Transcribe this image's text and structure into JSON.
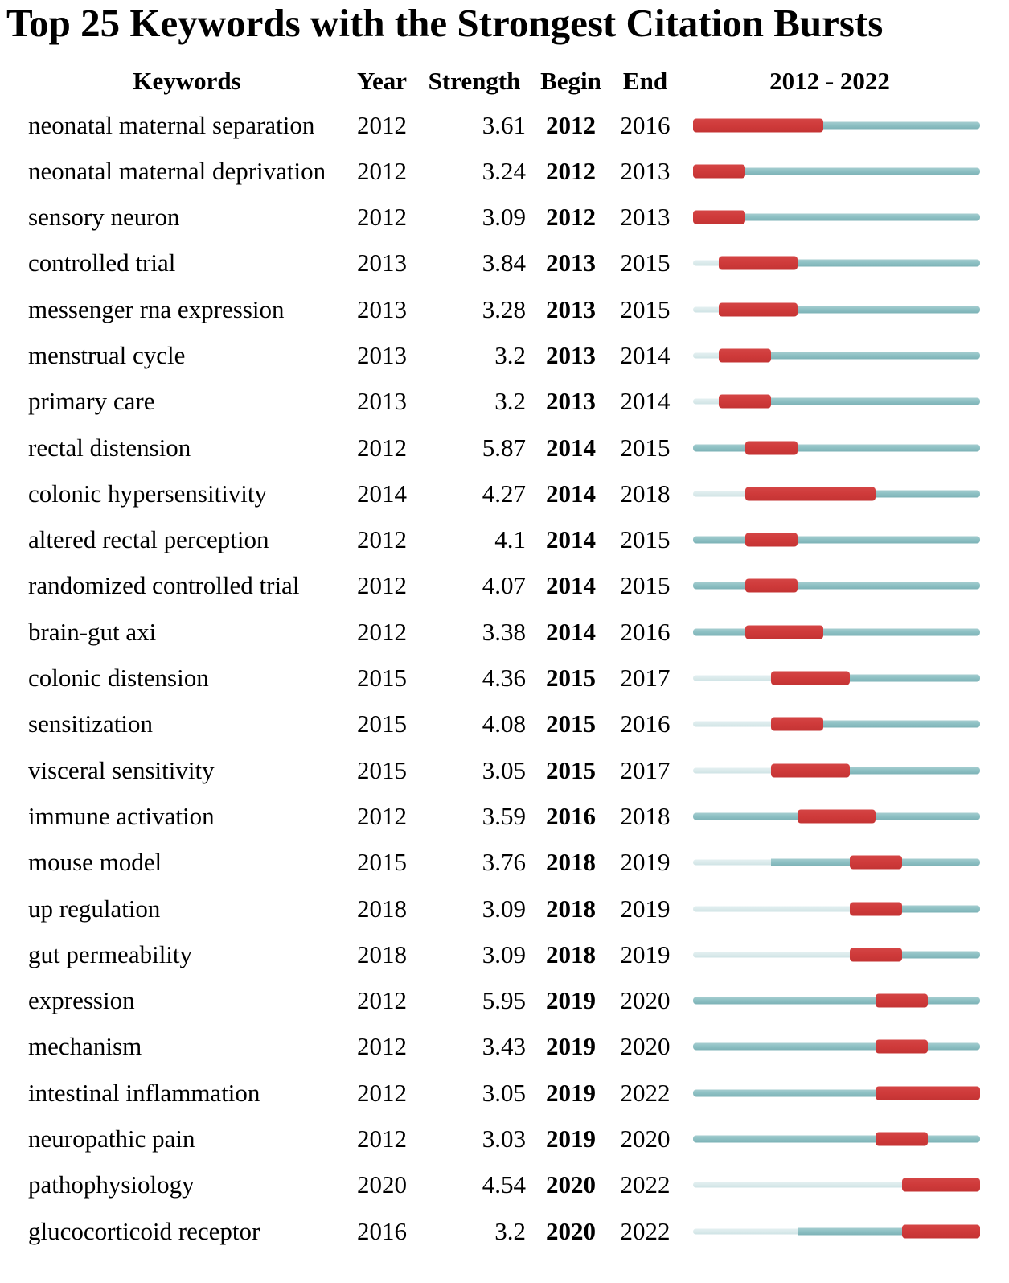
{
  "figure": {
    "title": "Top 25 Keywords with the Strongest Citation Bursts"
  },
  "chart_data": {
    "type": "bar",
    "subtype": "citation-burst-timeline-table",
    "title": "Top 25 Keywords with the Strongest Citation Bursts",
    "columns": [
      "Keywords",
      "Year",
      "Strength",
      "Begin",
      "End",
      "2012 - 2022"
    ],
    "timeline_start": 2012,
    "timeline_end": 2022,
    "colors": {
      "burst_red": "#cf3a3a",
      "active_teal": "#8ec1c4",
      "pre_appearance_pale": "#d8e9ea",
      "text": "#000000",
      "background": "#ffffff"
    },
    "legend_note": "",
    "rows": [
      {
        "keyword": "neonatal maternal separation",
        "year": 2012,
        "strength": "3.61",
        "begin": 2012,
        "end": 2016
      },
      {
        "keyword": "neonatal maternal deprivation",
        "year": 2012,
        "strength": "3.24",
        "begin": 2012,
        "end": 2013
      },
      {
        "keyword": "sensory neuron",
        "year": 2012,
        "strength": "3.09",
        "begin": 2012,
        "end": 2013
      },
      {
        "keyword": "controlled trial",
        "year": 2013,
        "strength": "3.84",
        "begin": 2013,
        "end": 2015
      },
      {
        "keyword": "messenger rna expression",
        "year": 2013,
        "strength": "3.28",
        "begin": 2013,
        "end": 2015
      },
      {
        "keyword": "menstrual cycle",
        "year": 2013,
        "strength": "3.2",
        "begin": 2013,
        "end": 2014
      },
      {
        "keyword": "primary care",
        "year": 2013,
        "strength": "3.2",
        "begin": 2013,
        "end": 2014
      },
      {
        "keyword": "rectal distension",
        "year": 2012,
        "strength": "5.87",
        "begin": 2014,
        "end": 2015
      },
      {
        "keyword": "colonic hypersensitivity",
        "year": 2014,
        "strength": "4.27",
        "begin": 2014,
        "end": 2018
      },
      {
        "keyword": "altered rectal perception",
        "year": 2012,
        "strength": "4.1",
        "begin": 2014,
        "end": 2015
      },
      {
        "keyword": "randomized controlled trial",
        "year": 2012,
        "strength": "4.07",
        "begin": 2014,
        "end": 2015
      },
      {
        "keyword": "brain-gut axi",
        "year": 2012,
        "strength": "3.38",
        "begin": 2014,
        "end": 2016
      },
      {
        "keyword": "colonic distension",
        "year": 2015,
        "strength": "4.36",
        "begin": 2015,
        "end": 2017
      },
      {
        "keyword": "sensitization",
        "year": 2015,
        "strength": "4.08",
        "begin": 2015,
        "end": 2016
      },
      {
        "keyword": "visceral sensitivity",
        "year": 2015,
        "strength": "3.05",
        "begin": 2015,
        "end": 2017
      },
      {
        "keyword": "immune activation",
        "year": 2012,
        "strength": "3.59",
        "begin": 2016,
        "end": 2018
      },
      {
        "keyword": "mouse model",
        "year": 2015,
        "strength": "3.76",
        "begin": 2018,
        "end": 2019
      },
      {
        "keyword": "up regulation",
        "year": 2018,
        "strength": "3.09",
        "begin": 2018,
        "end": 2019
      },
      {
        "keyword": "gut permeability",
        "year": 2018,
        "strength": "3.09",
        "begin": 2018,
        "end": 2019
      },
      {
        "keyword": "expression",
        "year": 2012,
        "strength": "5.95",
        "begin": 2019,
        "end": 2020
      },
      {
        "keyword": "mechanism",
        "year": 2012,
        "strength": "3.43",
        "begin": 2019,
        "end": 2020
      },
      {
        "keyword": "intestinal inflammation",
        "year": 2012,
        "strength": "3.05",
        "begin": 2019,
        "end": 2022
      },
      {
        "keyword": "neuropathic pain",
        "year": 2012,
        "strength": "3.03",
        "begin": 2019,
        "end": 2020
      },
      {
        "keyword": "pathophysiology",
        "year": 2020,
        "strength": "4.54",
        "begin": 2020,
        "end": 2022
      },
      {
        "keyword": "glucocorticoid receptor",
        "year": 2016,
        "strength": "3.2",
        "begin": 2020,
        "end": 2022
      }
    ]
  }
}
